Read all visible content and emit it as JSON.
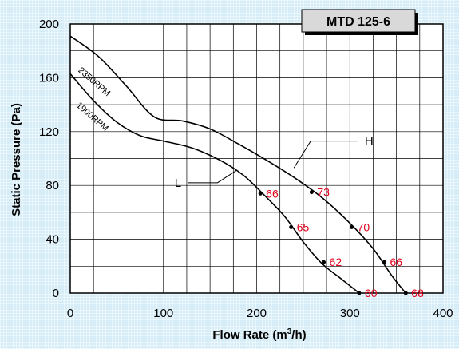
{
  "chart_data": {
    "type": "line",
    "title": "MTD 125-6",
    "xlabel": "Flow Rate (m",
    "xlabel_sup": "3",
    "xlabel_end": "/h)",
    "ylabel": "Static Pressure (Pa)",
    "xlim": [
      0,
      400
    ],
    "ylim": [
      0,
      200
    ],
    "x_ticks": [
      "0",
      "100",
      "200",
      "300",
      "400"
    ],
    "y_ticks": [
      "0",
      "40",
      "80",
      "120",
      "160",
      "200"
    ],
    "grid": true,
    "series": [
      {
        "name": "2350RPM",
        "callout": "H",
        "color": "#000000",
        "x": [
          0,
          30,
          60,
          90,
          120,
          150,
          180,
          210,
          240,
          270,
          300,
          325,
          345,
          360
        ],
        "y": [
          191,
          176,
          154,
          131,
          128,
          122,
          111,
          99,
          86,
          71,
          52,
          33,
          13,
          0
        ]
      },
      {
        "name": "1900RPM",
        "callout": "L",
        "color": "#000000",
        "x": [
          0,
          25,
          50,
          75,
          100,
          130,
          160,
          185,
          205,
          230,
          250,
          270,
          290,
          310
        ],
        "y": [
          163,
          143,
          127,
          117,
          113,
          108,
          99,
          88,
          75,
          57,
          38,
          22,
          11,
          0
        ]
      }
    ],
    "points": [
      {
        "x": 259,
        "y": 75,
        "label": "73"
      },
      {
        "x": 302,
        "y": 49,
        "label": "70"
      },
      {
        "x": 337,
        "y": 23,
        "label": "66"
      },
      {
        "x": 360,
        "y": 0,
        "label": "68"
      },
      {
        "x": 204,
        "y": 74,
        "label": "66"
      },
      {
        "x": 237,
        "y": 49,
        "label": "65"
      },
      {
        "x": 272,
        "y": 23,
        "label": "62"
      },
      {
        "x": 310,
        "y": 0,
        "label": "60"
      }
    ]
  }
}
